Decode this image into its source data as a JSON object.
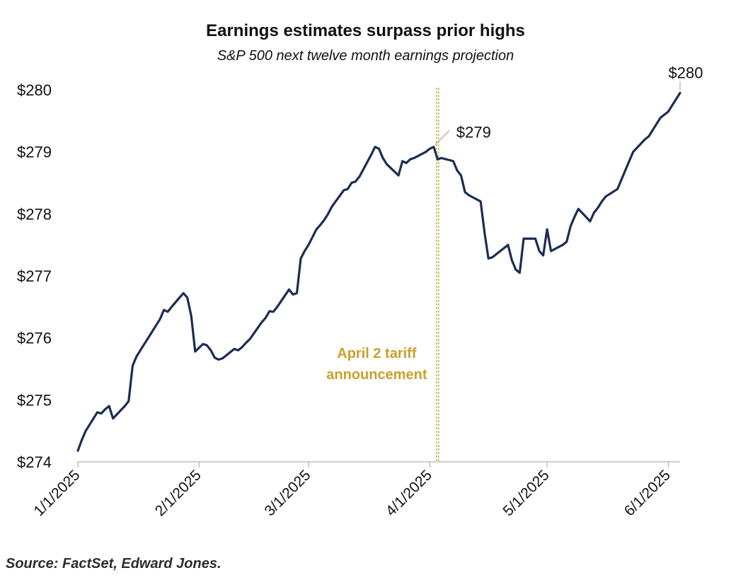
{
  "title": "Earnings estimates surpass prior highs",
  "subtitle": "S&P 500 next twelve month earnings projection",
  "source": "Source: FactSet, Edward Jones.",
  "chart_data": {
    "type": "line",
    "title": "Earnings estimates surpass prior highs",
    "subtitle": "S&P 500 next twelve month earnings projection",
    "xlabel": "",
    "ylabel": "",
    "x_ticks": [
      "1/1/2025",
      "2/1/2025",
      "3/1/2025",
      "4/1/2025",
      "5/1/2025",
      "6/1/2025"
    ],
    "x_tick_dates": [
      "2025-01-01",
      "2025-02-01",
      "2025-03-01",
      "2025-04-01",
      "2025-05-01",
      "2025-06-01"
    ],
    "xlim": [
      "2025-01-01",
      "2025-06-04"
    ],
    "y_ticks": [
      "$274",
      "$275",
      "$276",
      "$277",
      "$278",
      "$279",
      "$280"
    ],
    "y_tick_values": [
      274,
      275,
      276,
      277,
      278,
      279,
      280
    ],
    "ylim": [
      274,
      280
    ],
    "grid": false,
    "legend": "none",
    "line_color": "#1b2d52",
    "annotation_color": "#c9a02c",
    "series": [
      {
        "x": [
          "2025-01-01",
          "2025-01-02",
          "2025-01-03",
          "2025-01-06",
          "2025-01-07",
          "2025-01-08",
          "2025-01-09",
          "2025-01-10",
          "2025-01-13",
          "2025-01-14",
          "2025-01-15",
          "2025-01-16",
          "2025-01-17",
          "2025-01-20",
          "2025-01-21",
          "2025-01-22",
          "2025-01-23",
          "2025-01-24",
          "2025-01-25",
          "2025-01-27",
          "2025-01-28",
          "2025-01-29",
          "2025-01-30",
          "2025-01-31",
          "2025-02-02",
          "2025-02-03",
          "2025-02-04",
          "2025-02-05",
          "2025-02-06",
          "2025-02-07",
          "2025-02-08",
          "2025-02-10",
          "2025-02-11",
          "2025-02-12",
          "2025-02-13",
          "2025-02-14",
          "2025-02-17",
          "2025-02-18",
          "2025-02-19",
          "2025-02-20",
          "2025-02-21",
          "2025-02-24",
          "2025-02-25",
          "2025-02-26",
          "2025-02-27",
          "2025-02-28",
          "2025-03-01",
          "2025-03-03",
          "2025-03-04",
          "2025-03-05",
          "2025-03-06",
          "2025-03-07",
          "2025-03-10",
          "2025-03-11",
          "2025-03-12",
          "2025-03-13",
          "2025-03-14",
          "2025-03-17",
          "2025-03-18",
          "2025-03-19",
          "2025-03-20",
          "2025-03-21",
          "2025-03-24",
          "2025-03-25",
          "2025-03-26",
          "2025-03-27",
          "2025-03-28",
          "2025-03-31",
          "2025-04-01",
          "2025-04-02",
          "2025-04-03",
          "2025-04-04",
          "2025-04-07",
          "2025-04-08",
          "2025-04-09",
          "2025-04-10",
          "2025-04-11",
          "2025-04-14",
          "2025-04-15",
          "2025-04-16",
          "2025-04-17",
          "2025-04-21",
          "2025-04-22",
          "2025-04-23",
          "2025-04-24",
          "2025-04-25",
          "2025-04-28",
          "2025-04-29",
          "2025-04-30",
          "2025-05-01",
          "2025-05-02",
          "2025-05-05",
          "2025-05-06",
          "2025-05-07",
          "2025-05-08",
          "2025-05-09",
          "2025-05-12",
          "2025-05-13",
          "2025-05-14",
          "2025-05-15",
          "2025-05-16",
          "2025-05-19",
          "2025-05-20",
          "2025-05-21",
          "2025-05-22",
          "2025-05-23",
          "2025-05-26",
          "2025-05-27",
          "2025-05-28",
          "2025-05-29",
          "2025-05-30",
          "2025-06-01",
          "2025-06-02",
          "2025-06-03",
          "2025-06-04"
        ],
        "y": [
          274.18,
          274.35,
          274.5,
          274.8,
          274.78,
          274.85,
          274.9,
          274.7,
          274.9,
          274.98,
          275.55,
          275.7,
          275.8,
          276.1,
          276.2,
          276.3,
          276.45,
          276.42,
          276.5,
          276.65,
          276.72,
          276.65,
          276.35,
          275.78,
          275.9,
          275.88,
          275.8,
          275.68,
          275.65,
          275.67,
          275.72,
          275.82,
          275.8,
          275.85,
          275.92,
          275.98,
          276.25,
          276.32,
          276.43,
          276.42,
          276.5,
          276.78,
          276.7,
          276.72,
          277.28,
          277.4,
          277.5,
          277.75,
          277.82,
          277.9,
          278.0,
          278.12,
          278.38,
          278.4,
          278.5,
          278.52,
          278.6,
          278.95,
          279.08,
          279.05,
          278.9,
          278.8,
          278.62,
          278.85,
          278.82,
          278.88,
          278.9,
          279.0,
          279.05,
          279.08,
          278.88,
          278.9,
          278.85,
          278.7,
          278.62,
          278.35,
          278.3,
          278.2,
          277.7,
          277.28,
          277.3,
          277.5,
          277.25,
          277.1,
          277.05,
          277.6,
          277.6,
          277.4,
          277.33,
          277.75,
          277.4,
          277.5,
          277.55,
          277.8,
          277.95,
          278.08,
          277.88,
          278.02,
          278.1,
          278.2,
          278.28,
          278.4,
          278.55,
          278.7,
          278.85,
          279.0,
          279.2,
          279.25,
          279.35,
          279.45,
          279.55,
          279.65,
          279.75,
          279.85,
          279.95
        ]
      }
    ],
    "annotations": [
      {
        "type": "vline",
        "x": "2025-04-03",
        "label": "April 2 tariff announcement",
        "label_lines": [
          "April 2 tariff",
          "announcement"
        ]
      },
      {
        "type": "point_label",
        "x": "2025-04-02",
        "y": 279.08,
        "label": "$279"
      },
      {
        "type": "point_label",
        "x": "2025-06-04",
        "y": 279.95,
        "label": "$280"
      }
    ]
  }
}
